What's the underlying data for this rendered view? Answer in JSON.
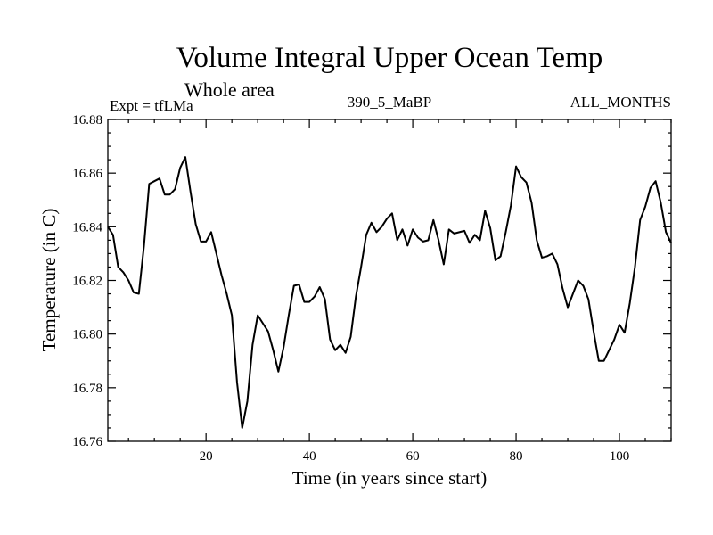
{
  "chart_data": {
    "type": "line",
    "title": "Volume Integral Upper Ocean Temp",
    "subtitle": "Whole area",
    "info_left": "Expt = tfLMa",
    "info_center": "390_5_MaBP",
    "info_right": "ALL_MONTHS",
    "xlabel": "Time (in years since start)",
    "ylabel": "Temperature (in C)",
    "xlim": [
      1,
      110
    ],
    "ylim": [
      16.76,
      16.88
    ],
    "xticks": [
      20,
      40,
      60,
      80,
      100
    ],
    "yticks": [
      "16.76",
      "16.78",
      "16.80",
      "16.82",
      "16.84",
      "16.86",
      "16.88"
    ],
    "series": [
      {
        "name": "Temperature",
        "x": [
          1,
          2,
          3,
          4,
          5,
          6,
          7,
          8,
          9,
          10,
          11,
          12,
          13,
          14,
          15,
          16,
          17,
          18,
          19,
          20,
          21,
          22,
          23,
          24,
          25,
          26,
          27,
          28,
          29,
          30,
          31,
          32,
          33,
          34,
          35,
          36,
          37,
          38,
          39,
          40,
          41,
          42,
          43,
          44,
          45,
          46,
          47,
          48,
          49,
          50,
          51,
          52,
          53,
          54,
          55,
          56,
          57,
          58,
          59,
          60,
          61,
          62,
          63,
          64,
          65,
          66,
          67,
          68,
          69,
          70,
          71,
          72,
          73,
          74,
          75,
          76,
          77,
          78,
          79,
          80,
          81,
          82,
          83,
          84,
          85,
          86,
          87,
          88,
          89,
          90,
          91,
          92,
          93,
          94,
          95,
          96,
          97,
          98,
          99,
          100,
          101,
          102,
          103,
          104,
          105,
          106,
          107,
          108,
          109,
          110
        ],
        "y": [
          16.84,
          16.837,
          16.825,
          16.823,
          16.82,
          16.8155,
          16.815,
          16.833,
          16.856,
          16.857,
          16.858,
          16.852,
          16.852,
          16.854,
          16.862,
          16.866,
          16.853,
          16.841,
          16.8345,
          16.8345,
          16.838,
          16.83,
          16.822,
          16.815,
          16.807,
          16.782,
          16.765,
          16.775,
          16.796,
          16.807,
          16.804,
          16.801,
          16.794,
          16.786,
          16.795,
          16.807,
          16.818,
          16.8185,
          16.812,
          16.812,
          16.814,
          16.8175,
          16.813,
          16.798,
          16.794,
          16.796,
          16.793,
          16.799,
          16.814,
          16.825,
          16.837,
          16.8415,
          16.838,
          16.84,
          16.843,
          16.845,
          16.835,
          16.839,
          16.833,
          16.839,
          16.836,
          16.8345,
          16.835,
          16.8425,
          16.835,
          16.826,
          16.839,
          16.8375,
          16.838,
          16.8385,
          16.834,
          16.837,
          16.835,
          16.846,
          16.8395,
          16.8275,
          16.829,
          16.838,
          16.848,
          16.8625,
          16.8585,
          16.8565,
          16.849,
          16.835,
          16.8285,
          16.829,
          16.83,
          16.826,
          16.817,
          16.81,
          16.815,
          16.82,
          16.818,
          16.813,
          16.801,
          16.79,
          16.79,
          16.794,
          16.798,
          16.8035,
          16.8005,
          16.8115,
          16.825,
          16.8425,
          16.8475,
          16.8545,
          16.857,
          16.849,
          16.838,
          16.834
        ]
      }
    ]
  }
}
